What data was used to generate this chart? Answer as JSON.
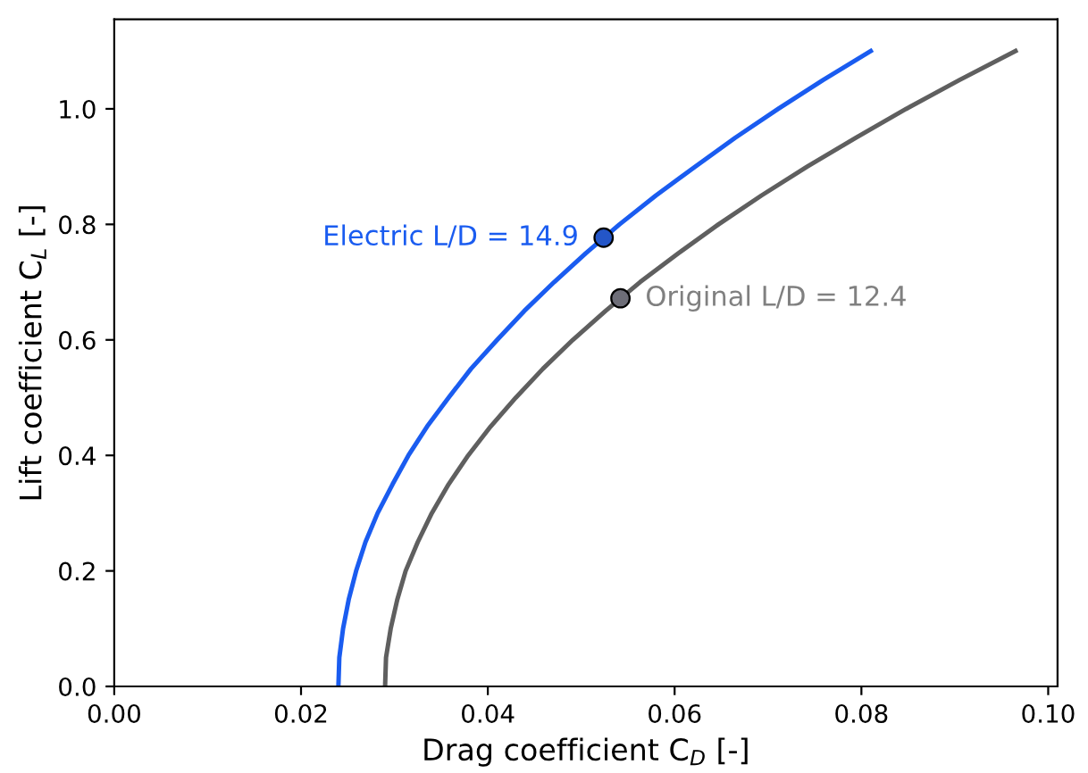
{
  "chart_data": {
    "type": "line",
    "xlabel": "Drag coefficient C$_{D}$ [-]",
    "ylabel": "Lift coefficient C$_{L}$ [-]",
    "xlim": [
      0,
      0.101
    ],
    "ylim": [
      0,
      1.155
    ],
    "xticks": [
      {
        "value": 0,
        "label": "0.00"
      },
      0.02,
      0.04,
      0.06,
      0.08,
      {
        "value": 0.1,
        "label": "0.10"
      }
    ],
    "yticks": [
      {
        "value": 0,
        "label": "0.0"
      },
      0.2,
      0.4,
      0.6,
      0.8,
      {
        "value": 1,
        "label": "1.0"
      }
    ],
    "grid": false,
    "legend": false,
    "series": [
      {
        "color": "#1a5cf0",
        "x": [
          0.024,
          0.0241,
          0.0245,
          0.0251,
          0.0259,
          0.0269,
          0.0282,
          0.0298,
          0.0315,
          0.0335,
          0.0358,
          0.0382,
          0.041,
          0.0439,
          0.0471,
          0.0505,
          0.0541,
          0.058,
          0.0622,
          0.0665,
          0.0711,
          0.0759,
          0.081
        ],
        "values": [
          0,
          0.05,
          0.1,
          0.15,
          0.2,
          0.25,
          0.3,
          0.35,
          0.4,
          0.45,
          0.5,
          0.55,
          0.6,
          0.65,
          0.7,
          0.75,
          0.8,
          0.85,
          0.9,
          0.95,
          1.0,
          1.05,
          1.1
        ]
      },
      {
        "color": "#5f5f5f",
        "x": [
          0.029,
          0.0291,
          0.0296,
          0.0303,
          0.0312,
          0.0325,
          0.034,
          0.0358,
          0.0379,
          0.0403,
          0.043,
          0.0459,
          0.0491,
          0.0526,
          0.0563,
          0.0604,
          0.0647,
          0.0693,
          0.0742,
          0.0794,
          0.0848,
          0.0905,
          0.0965
        ],
        "values": [
          0,
          0.05,
          0.1,
          0.15,
          0.2,
          0.25,
          0.3,
          0.35,
          0.4,
          0.45,
          0.5,
          0.55,
          0.6,
          0.65,
          0.7,
          0.75,
          0.8,
          0.85,
          0.9,
          0.95,
          1.0,
          1.05,
          1.1
        ]
      },
      {
        "type": "scatter",
        "color": "#2456c8",
        "marker": "circle",
        "x": [
          0.0524
        ],
        "values": [
          0.777
        ]
      },
      {
        "type": "scatter",
        "color": "#6e6e78",
        "marker": "circle",
        "x": [
          0.0542
        ],
        "values": [
          0.672
        ]
      }
    ],
    "annotations": [
      {
        "text": "Electric L/D = 14.9",
        "x": 0.0524,
        "y": 0.777
      },
      {
        "text": "Original L/D = 12.4",
        "x": 0.0542,
        "y": 0.672
      }
    ]
  }
}
